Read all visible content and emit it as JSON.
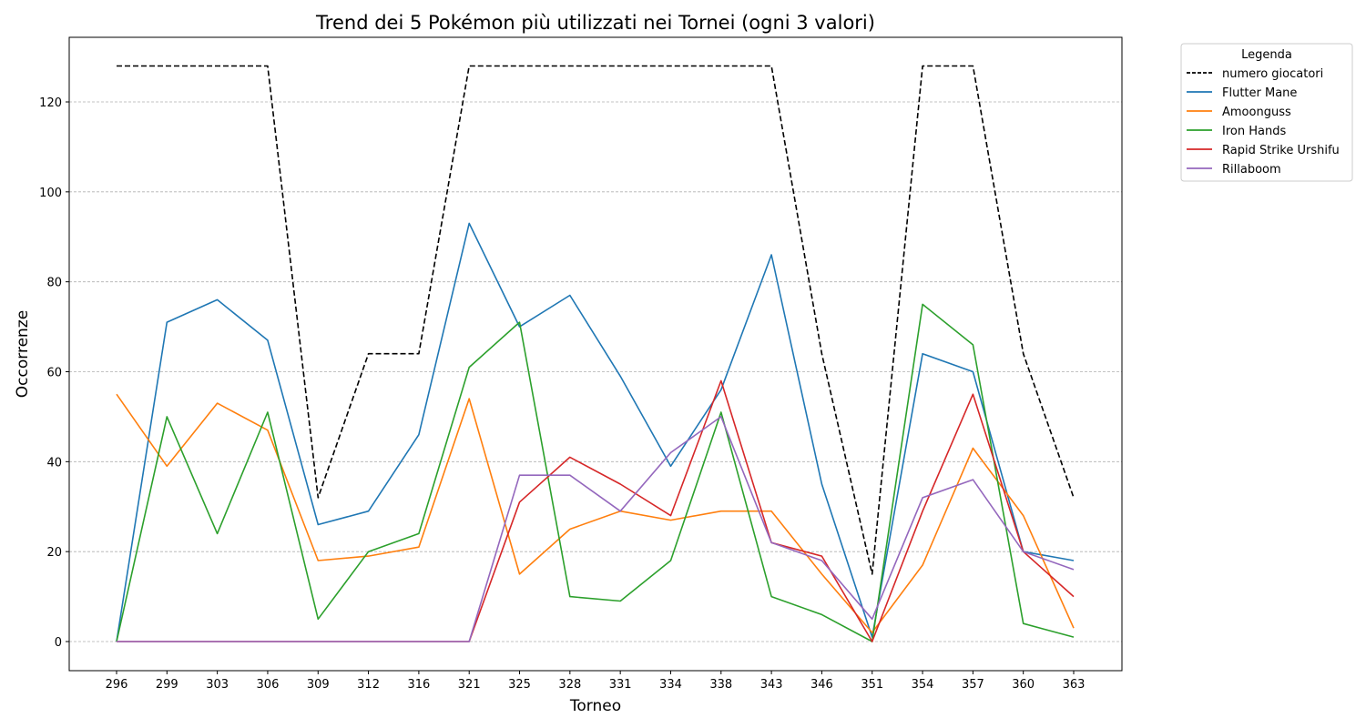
{
  "chart_data": {
    "type": "line",
    "title": "Trend dei 5 Pokémon più utilizzati nei Tornei (ogni 3 valori)",
    "xlabel": "Torneo",
    "ylabel": "Occorrenze",
    "categories": [
      "296",
      "299",
      "303",
      "306",
      "309",
      "312",
      "316",
      "321",
      "325",
      "328",
      "331",
      "334",
      "338",
      "343",
      "346",
      "351",
      "354",
      "357",
      "360",
      "363"
    ],
    "ylim": [
      -7,
      134
    ],
    "yticks": [
      0,
      20,
      40,
      60,
      80,
      100,
      120
    ],
    "grid": "y-dashed",
    "legend": {
      "title": "Legenda",
      "placement": "outside-top-right"
    },
    "series": [
      {
        "name": "numero giocatori",
        "color": "#000000",
        "dashed": true,
        "values": [
          128,
          128,
          128,
          128,
          32,
          64,
          64,
          128,
          128,
          128,
          128,
          128,
          128,
          128,
          64,
          15,
          128,
          128,
          64,
          32
        ]
      },
      {
        "name": "Flutter Mane",
        "color": "#1f77b4",
        "dashed": false,
        "values": [
          0,
          71,
          76,
          67,
          26,
          29,
          46,
          93,
          70,
          77,
          59,
          39,
          56,
          86,
          35,
          1,
          64,
          60,
          20,
          18
        ]
      },
      {
        "name": "Amoonguss",
        "color": "#ff7f0e",
        "dashed": false,
        "values": [
          55,
          39,
          53,
          47,
          18,
          19,
          21,
          54,
          15,
          25,
          29,
          27,
          29,
          29,
          15,
          2,
          17,
          43,
          28,
          3
        ]
      },
      {
        "name": "Iron Hands",
        "color": "#2ca02c",
        "dashed": false,
        "values": [
          0,
          50,
          24,
          51,
          5,
          20,
          24,
          61,
          71,
          10,
          9,
          18,
          51,
          10,
          6,
          0,
          75,
          66,
          4,
          1
        ]
      },
      {
        "name": "Rapid Strike Urshifu",
        "color": "#d62728",
        "dashed": false,
        "values": [
          0,
          0,
          0,
          0,
          0,
          0,
          0,
          0,
          31,
          41,
          35,
          28,
          58,
          22,
          19,
          0,
          29,
          55,
          20,
          10
        ]
      },
      {
        "name": "Rillaboom",
        "color": "#9467bd",
        "dashed": false,
        "values": [
          0,
          0,
          0,
          0,
          0,
          0,
          0,
          0,
          37,
          37,
          29,
          42,
          50,
          22,
          18,
          5,
          32,
          36,
          20,
          16
        ]
      }
    ]
  }
}
